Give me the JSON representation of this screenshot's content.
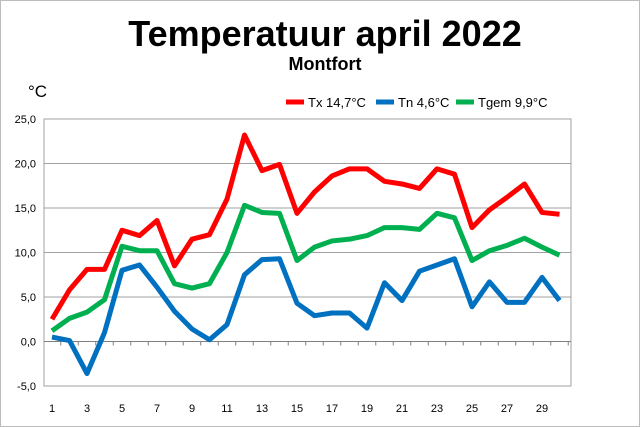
{
  "chart_data": {
    "type": "line",
    "title": "Temperatuur april 2022",
    "subtitle": "Montfort",
    "ylabel": "°C",
    "ylim": [
      -5,
      25
    ],
    "yticks": [
      "25,0",
      "20,0",
      "15,0",
      "10,0",
      "5,0",
      "0,0",
      "-5,0"
    ],
    "ytick_values": [
      25,
      20,
      15,
      10,
      5,
      0,
      -5
    ],
    "x": [
      1,
      2,
      3,
      4,
      5,
      6,
      7,
      8,
      9,
      10,
      11,
      12,
      13,
      14,
      15,
      16,
      17,
      18,
      19,
      20,
      21,
      22,
      23,
      24,
      25,
      26,
      27,
      28,
      29,
      30
    ],
    "xtick_labels": [
      "1",
      "3",
      "5",
      "7",
      "9",
      "11",
      "13",
      "15",
      "17",
      "19",
      "21",
      "23",
      "25",
      "27",
      "29"
    ],
    "grid": true,
    "legend_position": "top-right",
    "series": [
      {
        "name": "Tx 14,7°C",
        "color": "#ff0000",
        "values": [
          2.5,
          5.8,
          8.1,
          8.1,
          12.5,
          11.9,
          13.6,
          8.5,
          11.5,
          12.0,
          16.0,
          23.2,
          19.2,
          19.9,
          14.4,
          16.8,
          18.6,
          19.4,
          19.4,
          18.0,
          17.7,
          17.2,
          19.4,
          18.8,
          12.8,
          14.8,
          16.2,
          17.7,
          14.5,
          14.3
        ]
      },
      {
        "name": "Tn 4,6°C",
        "color": "#0070c0",
        "values": [
          0.5,
          0.1,
          -3.6,
          1.0,
          8.0,
          8.6,
          6.1,
          3.4,
          1.4,
          0.2,
          1.9,
          7.5,
          9.2,
          9.3,
          4.3,
          2.9,
          3.2,
          3.2,
          1.5,
          6.6,
          4.6,
          7.9,
          8.6,
          9.3,
          3.9,
          6.7,
          4.4,
          4.4,
          7.2,
          4.6
        ]
      },
      {
        "name": "Tgem 9,9°C",
        "color": "#00b050",
        "values": [
          1.2,
          2.6,
          3.3,
          4.7,
          10.7,
          10.2,
          10.2,
          6.5,
          6.0,
          6.5,
          10.0,
          15.3,
          14.5,
          14.4,
          9.1,
          10.6,
          11.3,
          11.5,
          11.9,
          12.8,
          12.8,
          12.6,
          14.4,
          13.9,
          9.1,
          10.2,
          10.8,
          11.6,
          10.6,
          9.7
        ]
      }
    ]
  }
}
